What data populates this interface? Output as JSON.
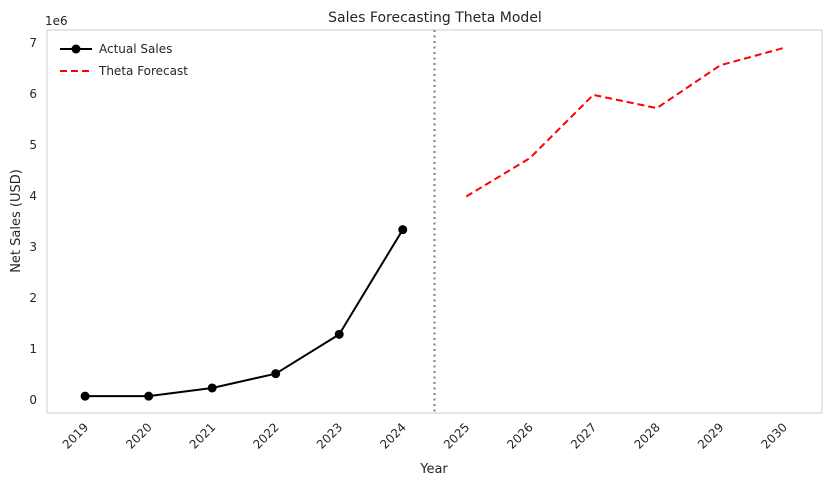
{
  "chart_data": {
    "type": "line",
    "title": "Sales Forecasting Theta Model",
    "xlabel": "Year",
    "ylabel": "Net Sales (USD)",
    "y_offset_label": "1e6",
    "ylim": [
      -0.25,
      7.25
    ],
    "y_ticks": [
      0,
      1,
      2,
      3,
      4,
      5,
      6,
      7
    ],
    "x_ticks": [
      "2019",
      "2020",
      "2021",
      "2022",
      "2023",
      "2024",
      "2025",
      "2026",
      "2027",
      "2028",
      "2029",
      "2030"
    ],
    "grid": false,
    "legend_position": "top-left",
    "forecast_boundary_x": 2024.5,
    "series": [
      {
        "name": "Actual Sales",
        "color": "#000000",
        "style": "solid",
        "marker": "circle",
        "x": [
          2019,
          2020,
          2021,
          2022,
          2023,
          2024
        ],
        "values": [
          0.08,
          0.08,
          0.24,
          0.52,
          1.29,
          3.34
        ]
      },
      {
        "name": "Theta Forecast",
        "color": "#ff0000",
        "style": "dashed",
        "marker": "none",
        "x": [
          2025,
          2026,
          2027,
          2028,
          2029,
          2030
        ],
        "values": [
          3.99,
          4.74,
          5.98,
          5.72,
          6.56,
          6.9
        ]
      }
    ]
  }
}
